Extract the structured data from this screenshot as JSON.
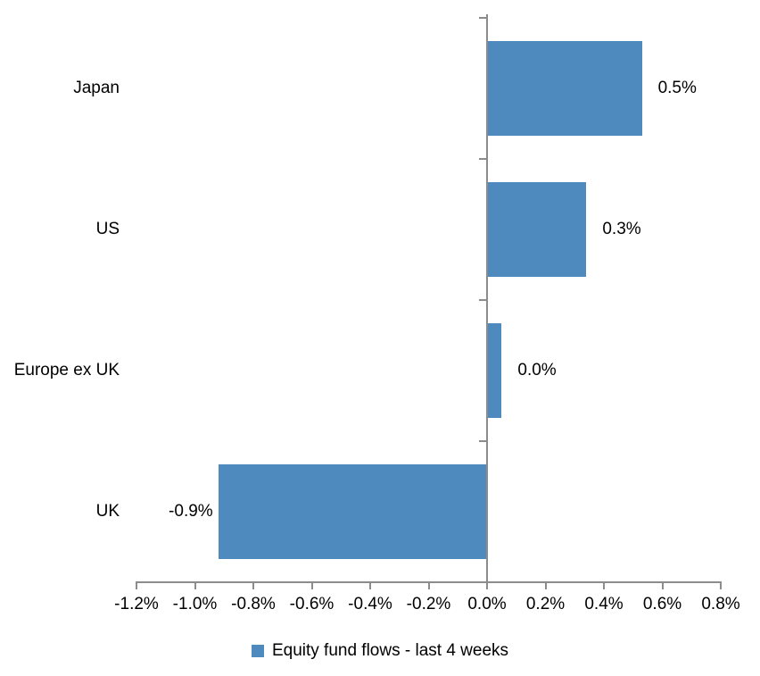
{
  "chart_data": {
    "type": "bar",
    "orientation": "horizontal",
    "title": "",
    "xlabel": "",
    "ylabel": "",
    "categories": [
      "Japan",
      "US",
      "Europe ex UK",
      "UK"
    ],
    "values": [
      0.53,
      0.34,
      0.05,
      -0.92
    ],
    "value_labels": [
      "0.5%",
      "0.3%",
      "0.0%",
      "-0.9%"
    ],
    "series_name": "Equity fund flows - last 4 weeks",
    "xlim": [
      -1.2,
      0.8
    ],
    "x_tick_step": 0.2,
    "x_tick_values": [
      -1.2,
      -1.0,
      -0.8,
      -0.6,
      -0.4,
      -0.2,
      0.0,
      0.2,
      0.4,
      0.6,
      0.8
    ],
    "x_tick_labels": [
      "-1.2%",
      "-1.0%",
      "-0.8%",
      "-0.6%",
      "-0.4%",
      "-0.2%",
      "0.0%",
      "0.2%",
      "0.4%",
      "0.6%",
      "0.8%"
    ],
    "grid": false,
    "legend_position": "bottom",
    "colors": {
      "bar": "#4E8ABE",
      "axis": "#8C8C8C",
      "text": "#000000",
      "background": "#FFFFFF"
    }
  }
}
